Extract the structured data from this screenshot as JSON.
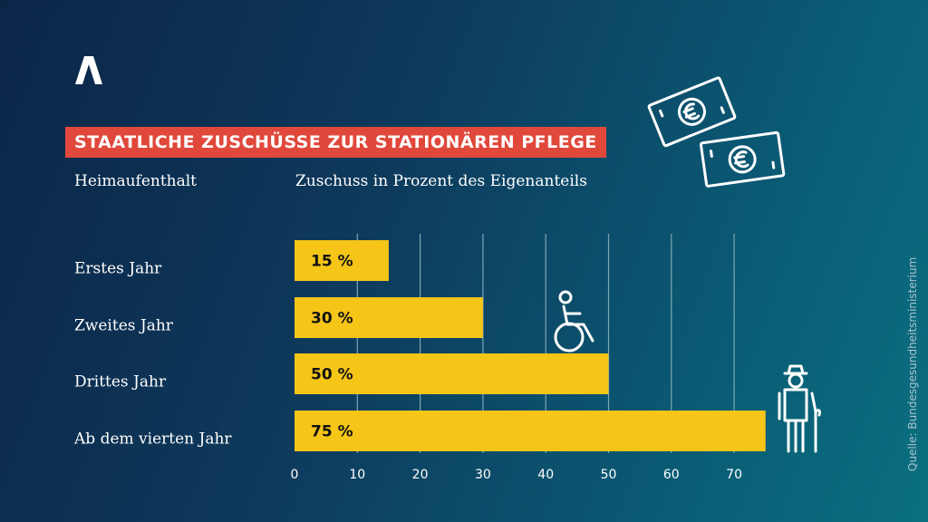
{
  "title": "STAATLICHE ZUSCHÜSSE ZUR STATIONÄREN PFLEGE",
  "column_headers": {
    "left": "Heimaufenthalt",
    "right": "Zuschuss in Prozent des Eigenanteils"
  },
  "source": "Quelle: Bundesgesundheitsministerium",
  "icons": [
    "brand-logo-icon",
    "euro-banknote-icon",
    "wheelchair-icon",
    "elderly-person-icon"
  ],
  "colors": {
    "bar": "#f5c518",
    "title_banner": "#e0483b",
    "background_start": "#0b2547",
    "background_end": "#0b7080",
    "gridline": "#7fa6b5"
  },
  "chart_data": {
    "type": "bar",
    "orientation": "horizontal",
    "categories": [
      "Erstes Jahr",
      "Zweites Jahr",
      "Drittes Jahr",
      "Ab dem vierten Jahr"
    ],
    "values": [
      15,
      30,
      50,
      75
    ],
    "value_labels": [
      "15 %",
      "30 %",
      "50 %",
      "75 %"
    ],
    "xlim": [
      0,
      75
    ],
    "xticks": [
      0,
      10,
      20,
      30,
      40,
      50,
      60,
      70
    ],
    "grid": true,
    "legend": "none"
  }
}
